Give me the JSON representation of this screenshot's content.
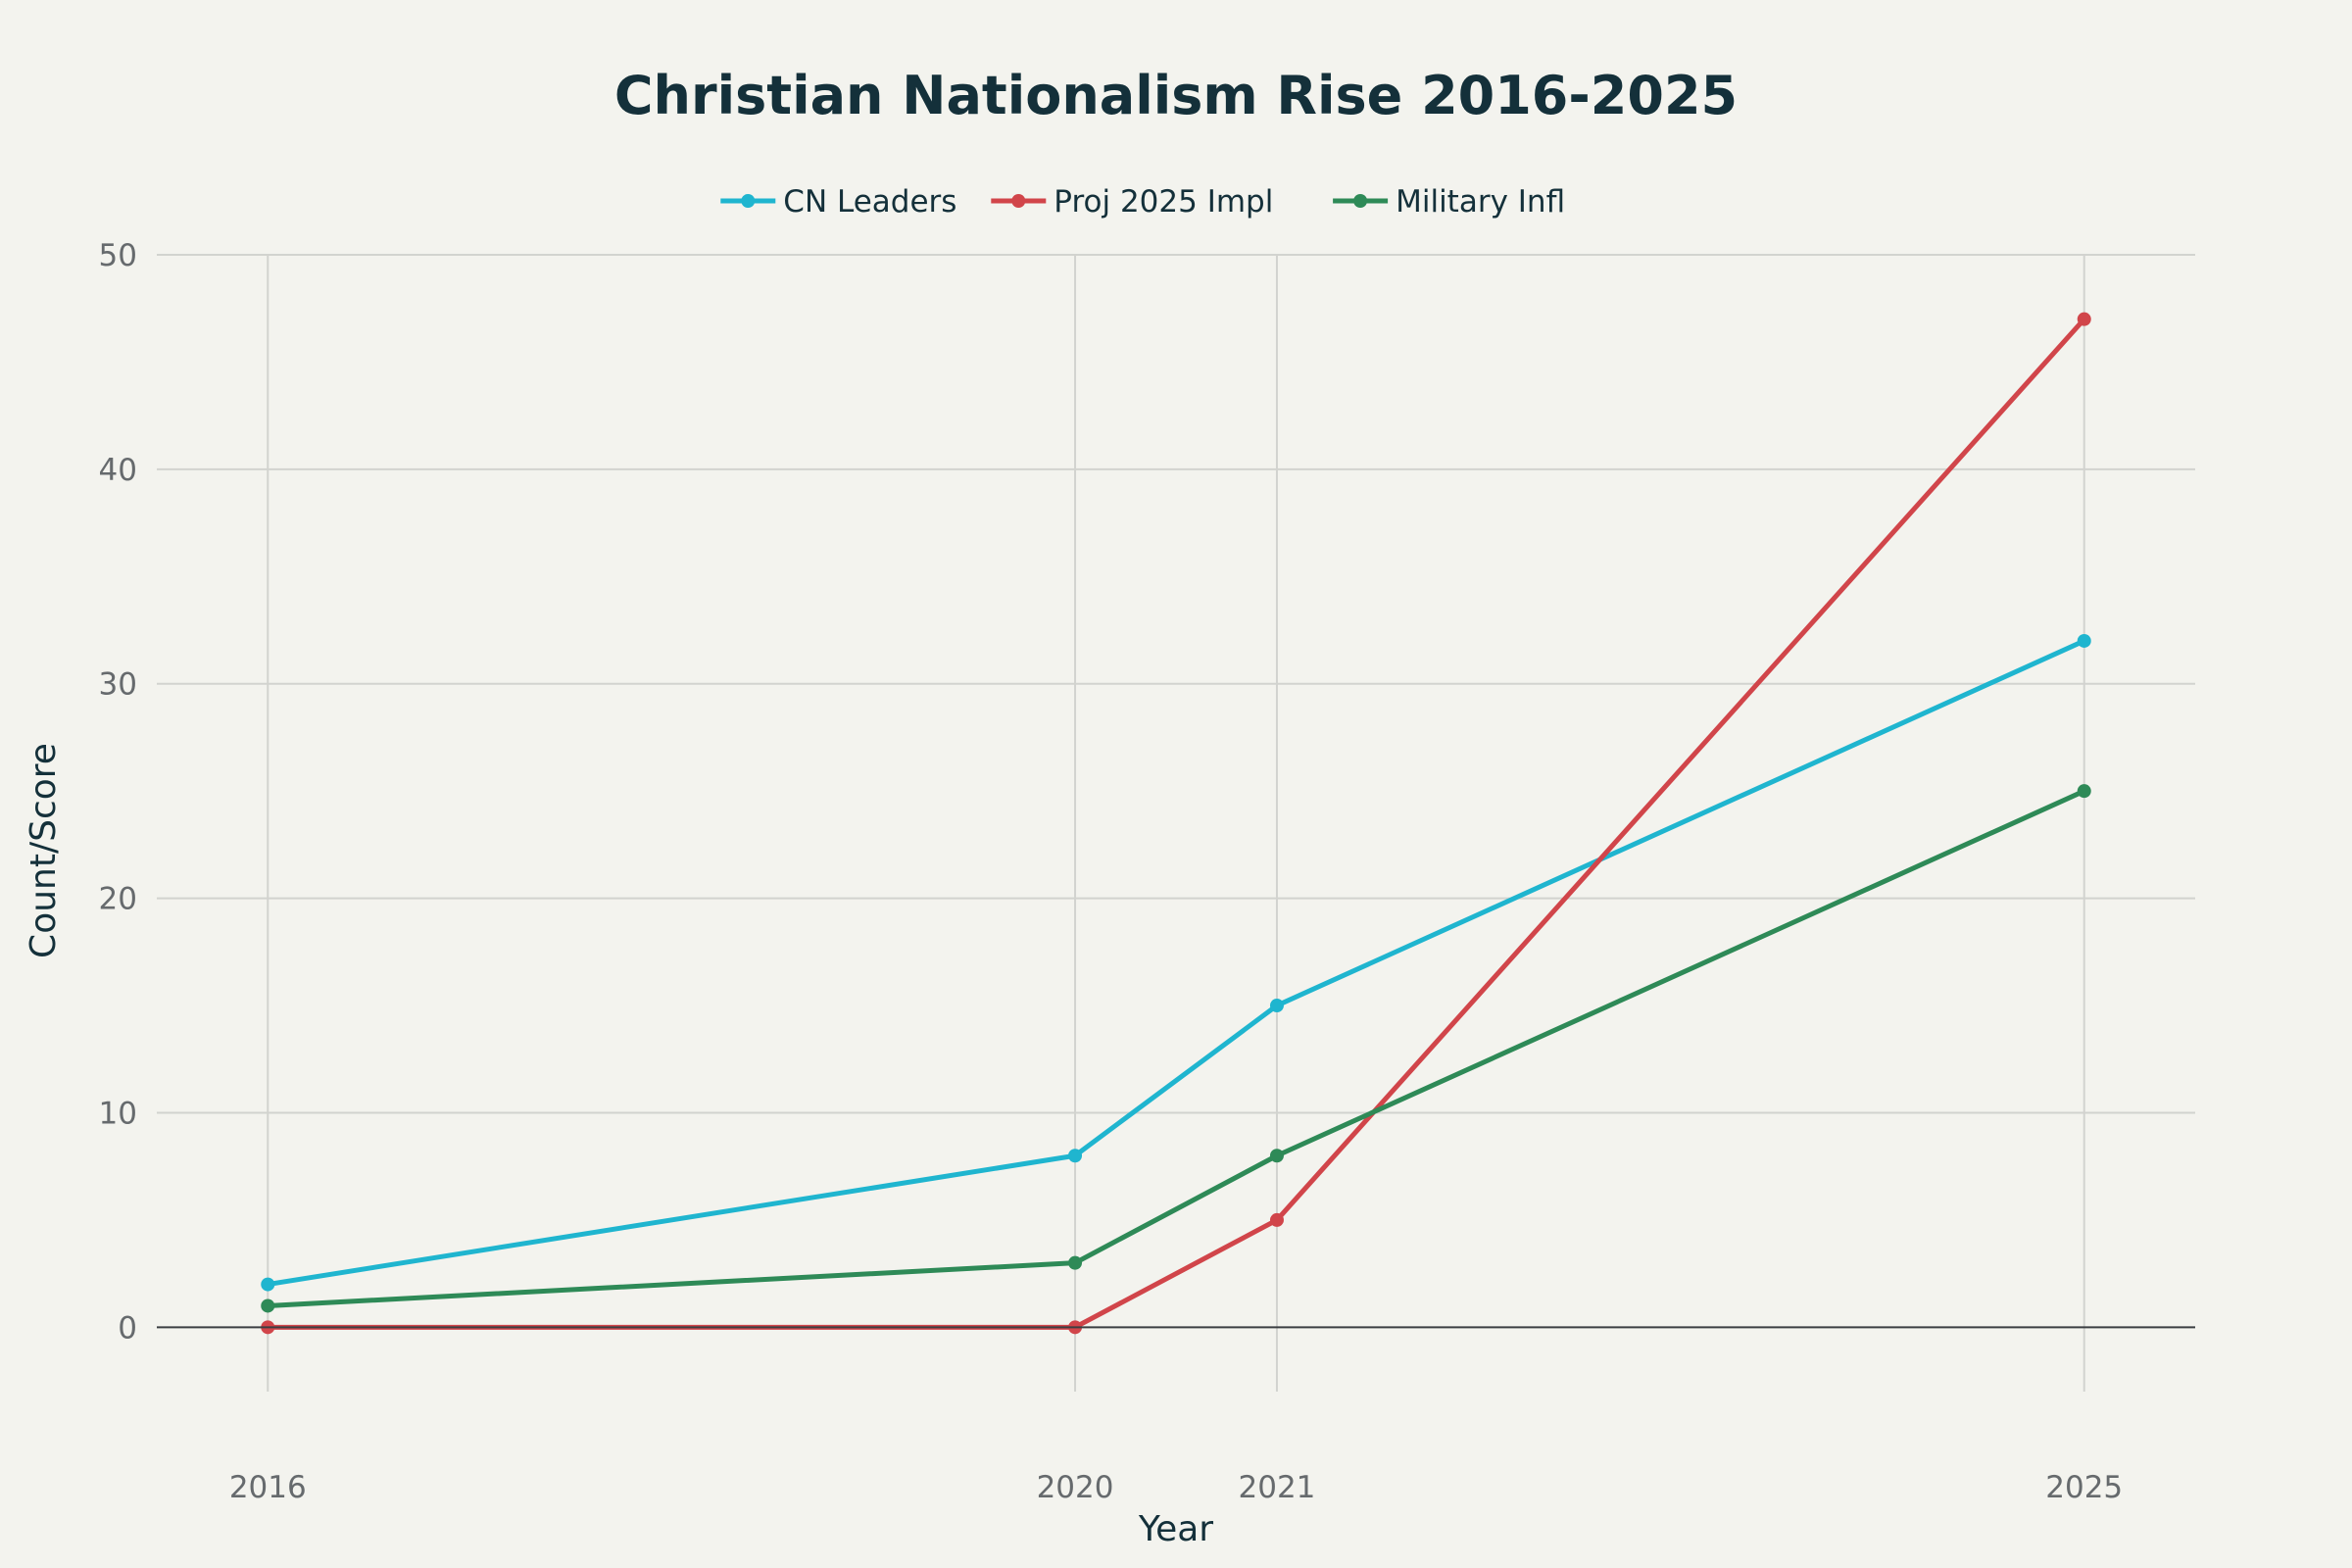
{
  "chart_data": {
    "type": "line",
    "title": "Christian Nationalism Rise 2016-2025",
    "xlabel": "Year",
    "ylabel": "Count/Score",
    "x": [
      2016,
      2020,
      2021,
      2025
    ],
    "x_ticks": [
      "2016",
      "2020",
      "2021",
      "2025"
    ],
    "xlim": [
      2015.45,
      2025.55
    ],
    "ylim": [
      -3,
      50
    ],
    "y_ticks": [
      0,
      10,
      20,
      30,
      40,
      50
    ],
    "grid": true,
    "legend_position": "top-center",
    "series": [
      {
        "name": "CN Leaders",
        "color": "#1fb5cf",
        "values": [
          2,
          8,
          15,
          32
        ]
      },
      {
        "name": "Proj 2025 Impl",
        "color": "#d1454a",
        "values": [
          0,
          0,
          5,
          47
        ]
      },
      {
        "name": "Military Infl",
        "color": "#2e8a57",
        "values": [
          1,
          3,
          8,
          25
        ]
      }
    ]
  }
}
